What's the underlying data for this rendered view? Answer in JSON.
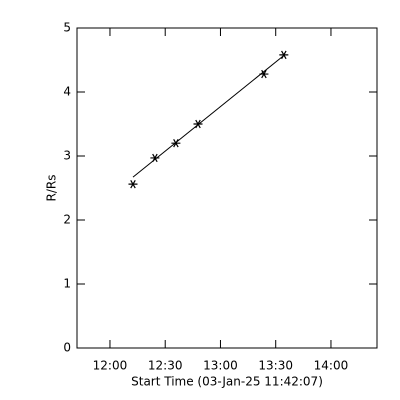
{
  "chart_data": {
    "type": "scatter",
    "xlabel": "Start Time (03-Jan-25 11:42:07)",
    "ylabel": "R/Rs",
    "series": [
      {
        "x": [
          732.5,
          744.4,
          755.8,
          767.8,
          803.6,
          814.4
        ],
        "values": [
          2.56,
          2.97,
          3.2,
          3.5,
          4.28,
          4.58
        ],
        "color": "#000000",
        "marker": "asterisk"
      },
      {
        "x": [
          732.5,
          814.4
        ],
        "values": [
          2.67,
          4.57
        ],
        "color": "#000000",
        "marker": "line"
      }
    ],
    "xlim": [
      702.1,
      865
    ],
    "xticks": [
      {
        "value": 720,
        "label": "12:00"
      },
      {
        "value": 750,
        "label": "12:30"
      },
      {
        "value": 780,
        "label": "13:00"
      },
      {
        "value": 810,
        "label": "13:30"
      },
      {
        "value": 840,
        "label": "14:00"
      }
    ],
    "ylim": [
      0,
      5
    ],
    "yticks": [
      0,
      1,
      2,
      3,
      4,
      5
    ],
    "grid": false
  }
}
